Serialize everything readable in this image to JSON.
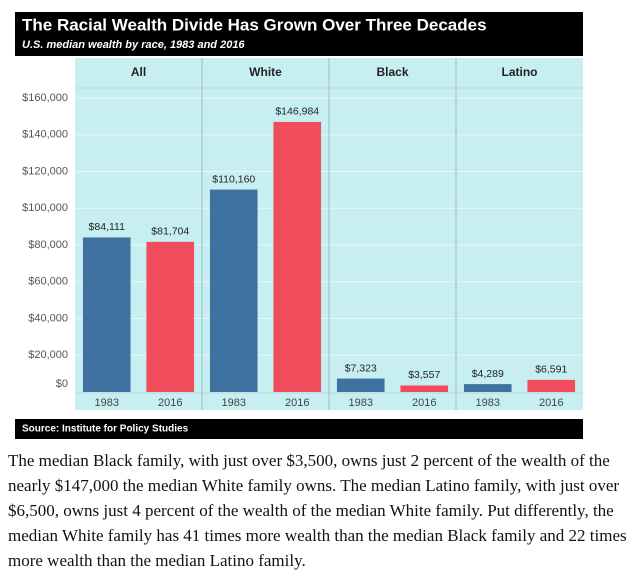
{
  "chart_data": {
    "type": "bar",
    "title": "The Racial Wealth Divide Has Grown Over Three Decades",
    "subtitle": "U.S. median wealth by race, 1983 and 2016",
    "source": "Source: Institute for Policy Studies",
    "groups": [
      "All",
      "White",
      "Black",
      "Latino"
    ],
    "series": [
      {
        "name": "1983",
        "color": "#3f72a0",
        "values": [
          84111,
          110160,
          7323,
          4289
        ],
        "value_labels": [
          "$84,111",
          "$110,160",
          "$7,323",
          "$4,289"
        ]
      },
      {
        "name": "2016",
        "color": "#f04c5c",
        "values": [
          81704,
          146984,
          3557,
          6591
        ],
        "value_labels": [
          "$81,704",
          "$146,984",
          "$3,557",
          "$6,591"
        ]
      }
    ],
    "ylim": [
      0,
      160000
    ],
    "yticks": [
      {
        "value": 0,
        "label": "$0"
      },
      {
        "value": 20000,
        "label": "$20,000"
      },
      {
        "value": 40000,
        "label": "$40,000"
      },
      {
        "value": 60000,
        "label": "$60,000"
      },
      {
        "value": 80000,
        "label": "$80,000"
      },
      {
        "value": 100000,
        "label": "$100,000"
      },
      {
        "value": 120000,
        "label": "$120,000"
      },
      {
        "value": 140000,
        "label": "$140,000"
      },
      {
        "value": 160000,
        "label": "$160,000"
      }
    ],
    "grid": true
  },
  "body": {
    "text": "The median Black family, with just over $3,500, owns just 2 percent of the wealth of the nearly $147,000 the median White family owns. The median Latino family, with just over $6,500, owns just 4 percent of the wealth of the median White family. Put differently, the median White family has 41 times more wealth than the median Black family and 22 times more wealth than the median Latino family."
  }
}
